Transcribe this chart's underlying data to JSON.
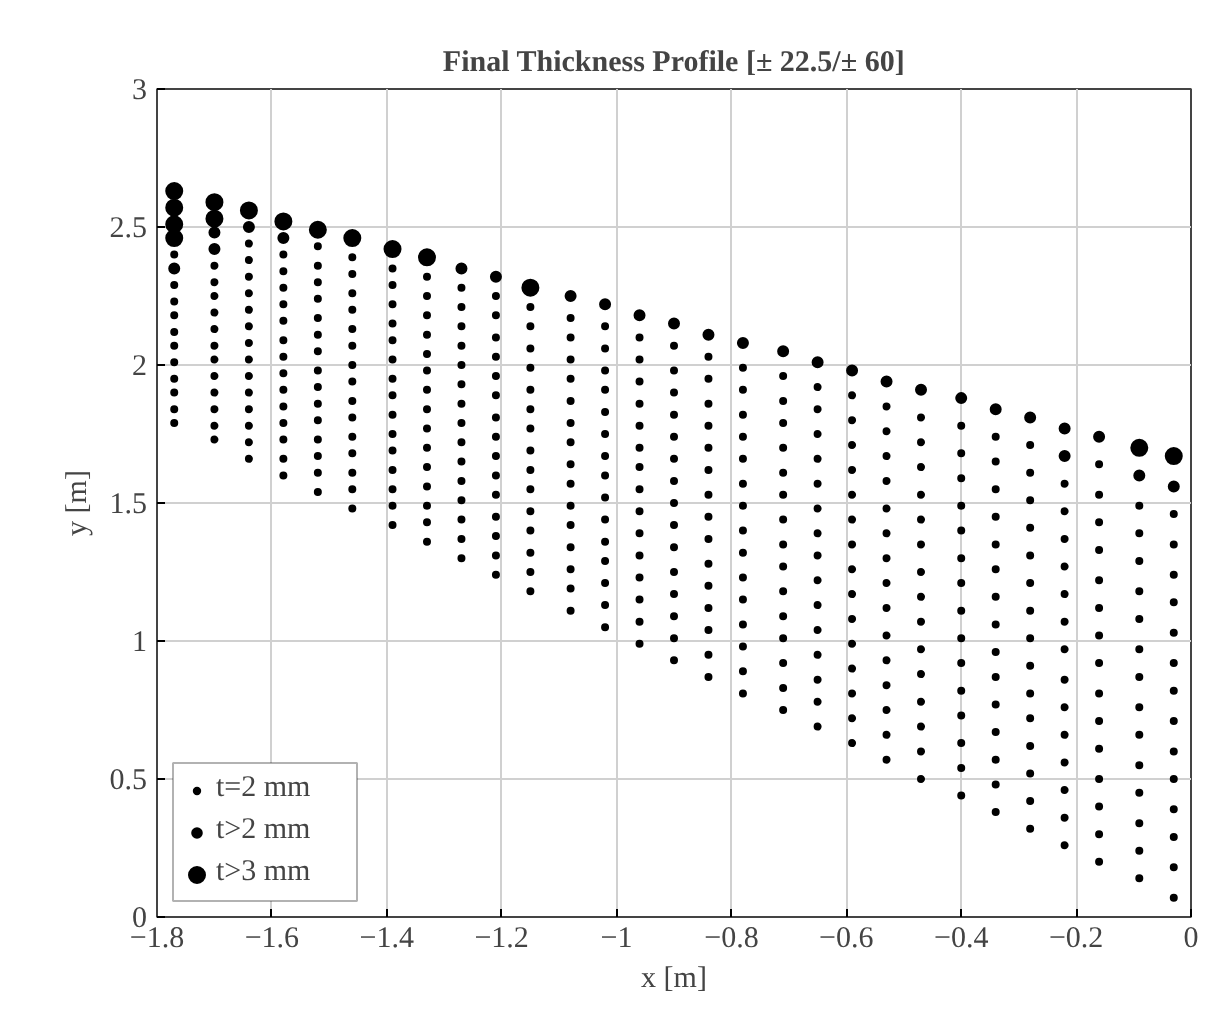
{
  "chart_data": {
    "type": "scatter",
    "title": "Final Thickness Profile [± 22.5/± 60]",
    "xlabel": "x [m]",
    "ylabel": "y [m]",
    "xlim": [
      -1.8,
      0
    ],
    "ylim": [
      0,
      3
    ],
    "xticks": [
      {
        "value": -1.8,
        "label": "−1.8"
      },
      {
        "value": -1.6,
        "label": "−1.6"
      },
      {
        "value": -1.4,
        "label": "−1.4"
      },
      {
        "value": -1.2,
        "label": "−1.2"
      },
      {
        "value": -1,
        "label": "−1"
      },
      {
        "value": -0.8,
        "label": "−0.8"
      },
      {
        "value": -0.6,
        "label": "−0.6"
      },
      {
        "value": -0.4,
        "label": "−0.4"
      },
      {
        "value": -0.2,
        "label": "−0.2"
      },
      0
    ],
    "yticks": [
      0,
      0.5,
      1,
      1.5,
      2,
      2.5,
      3
    ],
    "grid": true,
    "legend": "bottom left",
    "marker": "circle",
    "series": [
      {
        "name": "t=2 mm",
        "color": "#000000",
        "x": [
          -1.77,
          -1.77,
          -1.77,
          -1.77,
          -1.77,
          -1.77,
          -1.77,
          -1.77,
          -1.77,
          -1.77,
          -1.77,
          -1.7,
          -1.7,
          -1.7,
          -1.7,
          -1.7,
          -1.7,
          -1.7,
          -1.7,
          -1.7,
          -1.7,
          -1.7,
          -1.7,
          -1.64,
          -1.64,
          -1.64,
          -1.64,
          -1.64,
          -1.64,
          -1.64,
          -1.64,
          -1.64,
          -1.64,
          -1.64,
          -1.64,
          -1.64,
          -1.64,
          -1.58,
          -1.58,
          -1.58,
          -1.58,
          -1.58,
          -1.58,
          -1.58,
          -1.58,
          -1.58,
          -1.58,
          -1.58,
          -1.58,
          -1.58,
          -1.58,
          -1.52,
          -1.52,
          -1.52,
          -1.52,
          -1.52,
          -1.52,
          -1.52,
          -1.52,
          -1.52,
          -1.52,
          -1.52,
          -1.52,
          -1.52,
          -1.52,
          -1.52,
          -1.46,
          -1.46,
          -1.46,
          -1.46,
          -1.46,
          -1.46,
          -1.46,
          -1.46,
          -1.46,
          -1.46,
          -1.46,
          -1.46,
          -1.46,
          -1.46,
          -1.46,
          -1.39,
          -1.39,
          -1.39,
          -1.39,
          -1.39,
          -1.39,
          -1.39,
          -1.39,
          -1.39,
          -1.39,
          -1.39,
          -1.39,
          -1.39,
          -1.39,
          -1.39,
          -1.33,
          -1.33,
          -1.33,
          -1.33,
          -1.33,
          -1.33,
          -1.33,
          -1.33,
          -1.33,
          -1.33,
          -1.33,
          -1.33,
          -1.33,
          -1.33,
          -1.33,
          -1.27,
          -1.27,
          -1.27,
          -1.27,
          -1.27,
          -1.27,
          -1.27,
          -1.27,
          -1.27,
          -1.27,
          -1.27,
          -1.27,
          -1.27,
          -1.27,
          -1.27,
          -1.21,
          -1.21,
          -1.21,
          -1.21,
          -1.21,
          -1.21,
          -1.21,
          -1.21,
          -1.21,
          -1.21,
          -1.21,
          -1.21,
          -1.21,
          -1.21,
          -1.21,
          -1.15,
          -1.15,
          -1.15,
          -1.15,
          -1.15,
          -1.15,
          -1.15,
          -1.15,
          -1.15,
          -1.15,
          -1.15,
          -1.15,
          -1.15,
          -1.15,
          -1.15,
          -1.08,
          -1.08,
          -1.08,
          -1.08,
          -1.08,
          -1.08,
          -1.08,
          -1.08,
          -1.08,
          -1.08,
          -1.08,
          -1.08,
          -1.08,
          -1.08,
          -1.08,
          -1.02,
          -1.02,
          -1.02,
          -1.02,
          -1.02,
          -1.02,
          -1.02,
          -1.02,
          -1.02,
          -1.02,
          -1.02,
          -1.02,
          -1.02,
          -1.02,
          -1.02,
          -0.96,
          -0.96,
          -0.96,
          -0.96,
          -0.96,
          -0.96,
          -0.96,
          -0.96,
          -0.96,
          -0.96,
          -0.96,
          -0.96,
          -0.96,
          -0.96,
          -0.96,
          -0.9,
          -0.9,
          -0.9,
          -0.9,
          -0.9,
          -0.9,
          -0.9,
          -0.9,
          -0.9,
          -0.9,
          -0.9,
          -0.9,
          -0.9,
          -0.9,
          -0.9,
          -0.84,
          -0.84,
          -0.84,
          -0.84,
          -0.84,
          -0.84,
          -0.84,
          -0.84,
          -0.84,
          -0.84,
          -0.84,
          -0.84,
          -0.84,
          -0.84,
          -0.84,
          -0.78,
          -0.78,
          -0.78,
          -0.78,
          -0.78,
          -0.78,
          -0.78,
          -0.78,
          -0.78,
          -0.78,
          -0.78,
          -0.78,
          -0.78,
          -0.78,
          -0.78,
          -0.71,
          -0.71,
          -0.71,
          -0.71,
          -0.71,
          -0.71,
          -0.71,
          -0.71,
          -0.71,
          -0.71,
          -0.71,
          -0.71,
          -0.71,
          -0.71,
          -0.71,
          -0.65,
          -0.65,
          -0.65,
          -0.65,
          -0.65,
          -0.65,
          -0.65,
          -0.65,
          -0.65,
          -0.65,
          -0.65,
          -0.65,
          -0.65,
          -0.65,
          -0.65,
          -0.59,
          -0.59,
          -0.59,
          -0.59,
          -0.59,
          -0.59,
          -0.59,
          -0.59,
          -0.59,
          -0.59,
          -0.59,
          -0.59,
          -0.59,
          -0.59,
          -0.59,
          -0.53,
          -0.53,
          -0.53,
          -0.53,
          -0.53,
          -0.53,
          -0.53,
          -0.53,
          -0.53,
          -0.53,
          -0.53,
          -0.53,
          -0.53,
          -0.53,
          -0.53,
          -0.47,
          -0.47,
          -0.47,
          -0.47,
          -0.47,
          -0.47,
          -0.47,
          -0.47,
          -0.47,
          -0.47,
          -0.47,
          -0.47,
          -0.47,
          -0.47,
          -0.47,
          -0.4,
          -0.4,
          -0.4,
          -0.4,
          -0.4,
          -0.4,
          -0.4,
          -0.4,
          -0.4,
          -0.4,
          -0.4,
          -0.4,
          -0.4,
          -0.4,
          -0.4,
          -0.34,
          -0.34,
          -0.34,
          -0.34,
          -0.34,
          -0.34,
          -0.34,
          -0.34,
          -0.34,
          -0.34,
          -0.34,
          -0.34,
          -0.34,
          -0.34,
          -0.34,
          -0.28,
          -0.28,
          -0.28,
          -0.28,
          -0.28,
          -0.28,
          -0.28,
          -0.28,
          -0.28,
          -0.28,
          -0.28,
          -0.28,
          -0.28,
          -0.28,
          -0.28,
          -0.22,
          -0.22,
          -0.22,
          -0.22,
          -0.22,
          -0.22,
          -0.22,
          -0.22,
          -0.22,
          -0.22,
          -0.22,
          -0.22,
          -0.22,
          -0.22,
          -0.16,
          -0.16,
          -0.16,
          -0.16,
          -0.16,
          -0.16,
          -0.16,
          -0.16,
          -0.16,
          -0.16,
          -0.16,
          -0.16,
          -0.16,
          -0.16,
          -0.16,
          -0.09,
          -0.09,
          -0.09,
          -0.09,
          -0.09,
          -0.09,
          -0.09,
          -0.09,
          -0.09,
          -0.09,
          -0.09,
          -0.09,
          -0.09,
          -0.09,
          -0.03,
          -0.03,
          -0.03,
          -0.03,
          -0.03,
          -0.03,
          -0.03,
          -0.03,
          -0.03,
          -0.03,
          -0.03,
          -0.03,
          -0.03,
          -0.03
        ],
        "values": [
          2.4,
          2.29,
          2.23,
          2.18,
          2.12,
          2.07,
          2.01,
          1.95,
          1.9,
          1.84,
          1.79,
          2.36,
          2.3,
          2.25,
          2.19,
          2.13,
          2.07,
          2.02,
          1.96,
          1.9,
          1.84,
          1.78,
          1.73,
          2.44,
          2.38,
          2.32,
          2.26,
          2.2,
          2.14,
          2.08,
          2.02,
          1.96,
          1.9,
          1.84,
          1.78,
          1.72,
          1.66,
          2.4,
          2.34,
          2.28,
          2.22,
          2.16,
          2.09,
          2.03,
          1.97,
          1.91,
          1.85,
          1.79,
          1.73,
          1.66,
          1.6,
          2.43,
          2.36,
          2.3,
          2.24,
          2.17,
          2.11,
          2.05,
          1.98,
          1.92,
          1.86,
          1.8,
          1.73,
          1.67,
          1.61,
          1.54,
          2.39,
          2.33,
          2.26,
          2.2,
          2.13,
          2.07,
          2.0,
          1.94,
          1.87,
          1.81,
          1.74,
          1.68,
          1.61,
          1.55,
          1.48,
          2.35,
          2.29,
          2.22,
          2.15,
          2.09,
          2.02,
          1.95,
          1.89,
          1.82,
          1.75,
          1.69,
          1.62,
          1.55,
          1.49,
          1.42,
          2.32,
          2.25,
          2.18,
          2.11,
          2.04,
          1.98,
          1.91,
          1.84,
          1.77,
          1.7,
          1.63,
          1.56,
          1.49,
          1.43,
          1.36,
          2.28,
          2.21,
          2.14,
          2.07,
          2.0,
          1.93,
          1.86,
          1.79,
          1.72,
          1.65,
          1.58,
          1.51,
          1.44,
          1.37,
          1.3,
          2.25,
          2.18,
          2.1,
          2.03,
          1.96,
          1.89,
          1.81,
          1.74,
          1.67,
          1.6,
          1.53,
          1.45,
          1.38,
          1.31,
          1.24,
          2.21,
          2.14,
          2.06,
          1.99,
          1.91,
          1.84,
          1.77,
          1.69,
          1.62,
          1.55,
          1.47,
          1.4,
          1.32,
          1.25,
          1.18,
          2.17,
          2.1,
          2.02,
          1.95,
          1.87,
          1.79,
          1.72,
          1.64,
          1.57,
          1.49,
          1.42,
          1.34,
          1.26,
          1.19,
          1.11,
          2.14,
          2.06,
          1.98,
          1.91,
          1.83,
          1.75,
          1.67,
          1.6,
          1.52,
          1.44,
          1.36,
          1.29,
          1.21,
          1.13,
          1.05,
          2.1,
          2.02,
          1.94,
          1.86,
          1.78,
          1.7,
          1.63,
          1.55,
          1.47,
          1.39,
          1.31,
          1.23,
          1.15,
          1.07,
          0.99,
          2.07,
          1.98,
          1.9,
          1.82,
          1.74,
          1.66,
          1.58,
          1.5,
          1.42,
          1.34,
          1.25,
          1.17,
          1.09,
          1.01,
          0.93,
          2.03,
          1.95,
          1.86,
          1.78,
          1.7,
          1.62,
          1.53,
          1.45,
          1.37,
          1.28,
          1.2,
          1.12,
          1.04,
          0.95,
          0.87,
          1.99,
          1.91,
          1.82,
          1.74,
          1.66,
          1.57,
          1.49,
          1.4,
          1.32,
          1.23,
          1.15,
          1.06,
          0.98,
          0.89,
          0.81,
          1.96,
          1.87,
          1.79,
          1.7,
          1.61,
          1.53,
          1.44,
          1.35,
          1.27,
          1.18,
          1.09,
          1.01,
          0.92,
          0.83,
          0.75,
          1.92,
          1.84,
          1.75,
          1.66,
          1.57,
          1.48,
          1.39,
          1.31,
          1.22,
          1.13,
          1.04,
          0.95,
          0.86,
          0.78,
          0.69,
          1.89,
          1.8,
          1.71,
          1.62,
          1.53,
          1.44,
          1.35,
          1.26,
          1.17,
          1.08,
          0.99,
          0.9,
          0.81,
          0.72,
          0.63,
          1.85,
          1.76,
          1.67,
          1.58,
          1.48,
          1.39,
          1.3,
          1.21,
          1.12,
          1.02,
          0.93,
          0.84,
          0.75,
          0.66,
          0.57,
          1.81,
          1.72,
          1.63,
          1.53,
          1.44,
          1.35,
          1.25,
          1.16,
          1.07,
          0.97,
          0.88,
          0.78,
          0.69,
          0.6,
          0.5,
          1.78,
          1.68,
          1.59,
          1.49,
          1.4,
          1.3,
          1.21,
          1.11,
          1.01,
          0.92,
          0.82,
          0.73,
          0.63,
          0.54,
          0.44,
          1.74,
          1.65,
          1.55,
          1.45,
          1.35,
          1.26,
          1.16,
          1.06,
          0.96,
          0.87,
          0.77,
          0.67,
          0.57,
          0.48,
          0.38,
          1.71,
          1.61,
          1.51,
          1.41,
          1.31,
          1.21,
          1.11,
          1.01,
          0.91,
          0.81,
          0.72,
          0.62,
          0.52,
          0.42,
          0.32,
          1.57,
          1.47,
          1.37,
          1.27,
          1.17,
          1.07,
          0.97,
          0.86,
          0.76,
          0.66,
          0.56,
          0.46,
          0.36,
          0.26,
          1.64,
          1.53,
          1.43,
          1.33,
          1.22,
          1.12,
          1.02,
          0.92,
          0.81,
          0.71,
          0.61,
          0.5,
          0.4,
          0.3,
          0.2,
          1.49,
          1.39,
          1.29,
          1.18,
          1.08,
          0.97,
          0.87,
          0.76,
          0.66,
          0.55,
          0.45,
          0.34,
          0.24,
          0.14,
          1.46,
          1.35,
          1.24,
          1.14,
          1.03,
          0.92,
          0.82,
          0.71,
          0.6,
          0.5,
          0.39,
          0.29,
          0.18,
          0.07
        ]
      },
      {
        "name": "t>2 mm",
        "color": "#000000",
        "x": [
          -1.77,
          -1.7,
          -1.7,
          -1.64,
          -1.58,
          -1.27,
          -1.21,
          -1.08,
          -1.02,
          -0.96,
          -0.9,
          -0.84,
          -0.78,
          -0.71,
          -0.65,
          -0.59,
          -0.53,
          -0.47,
          -0.4,
          -0.34,
          -0.28,
          -0.22,
          -0.22,
          -0.16,
          -0.09,
          -0.03
        ],
        "values": [
          2.35,
          2.48,
          2.42,
          2.5,
          2.46,
          2.35,
          2.32,
          2.25,
          2.22,
          2.18,
          2.15,
          2.11,
          2.08,
          2.05,
          2.01,
          1.98,
          1.94,
          1.91,
          1.88,
          1.84,
          1.81,
          1.77,
          1.67,
          1.74,
          1.6,
          1.56
        ]
      },
      {
        "name": "t>3 mm",
        "color": "#000000",
        "x": [
          -1.77,
          -1.77,
          -1.77,
          -1.77,
          -1.7,
          -1.7,
          -1.64,
          -1.58,
          -1.52,
          -1.46,
          -1.39,
          -1.33,
          -1.15,
          -0.09,
          -0.03
        ],
        "values": [
          2.63,
          2.57,
          2.51,
          2.46,
          2.59,
          2.53,
          2.56,
          2.52,
          2.49,
          2.46,
          2.42,
          2.39,
          2.28,
          1.7,
          1.67
        ]
      }
    ]
  }
}
